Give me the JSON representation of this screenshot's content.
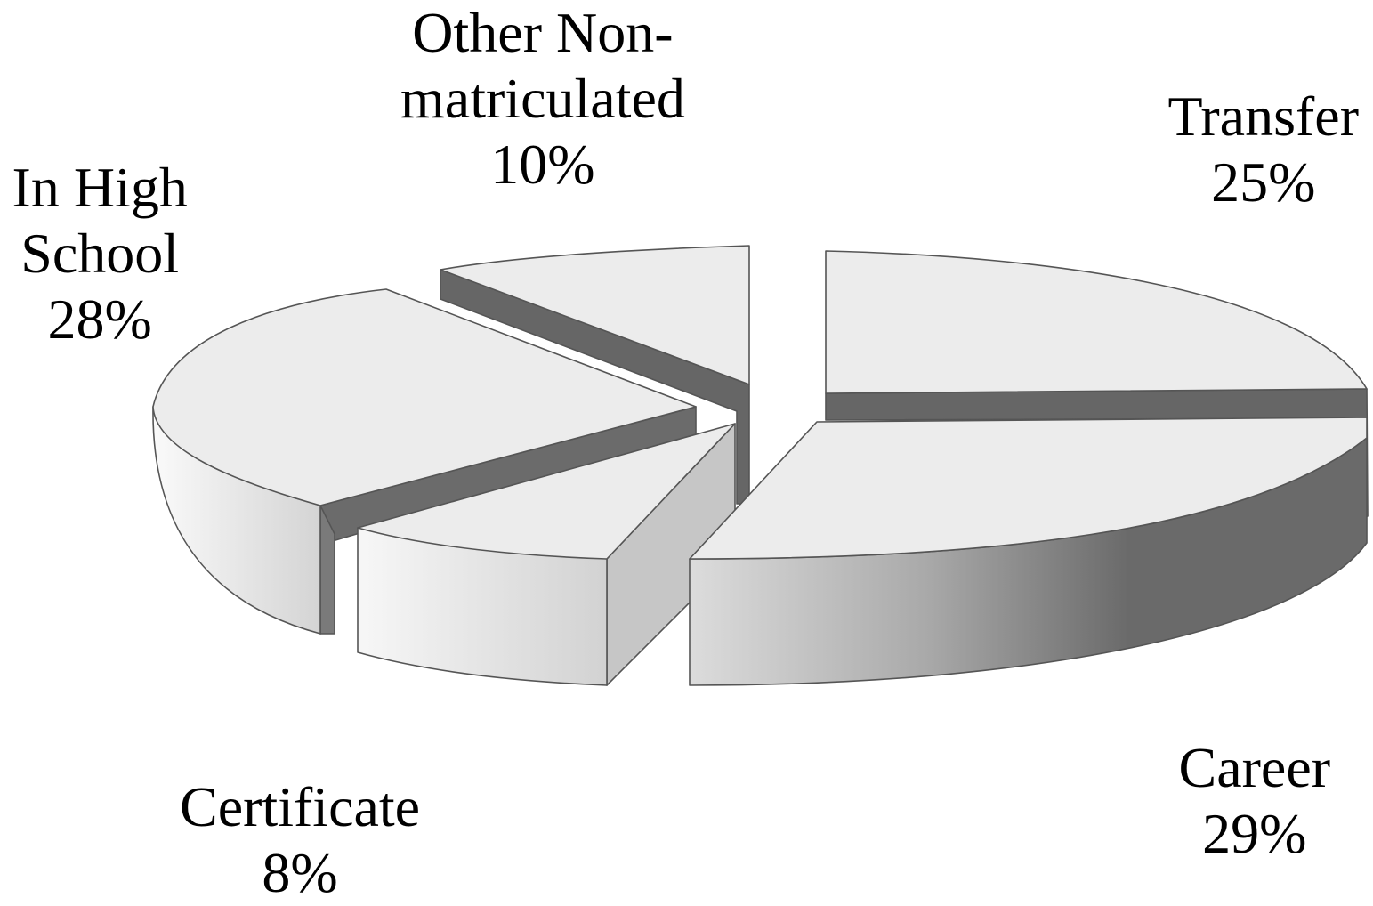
{
  "chart_data": {
    "type": "pie",
    "title": "",
    "style": "3d-exploded",
    "slices": [
      {
        "name": "Transfer",
        "value": 25,
        "value_label": "25%",
        "label_lines": [
          "Transfer"
        ]
      },
      {
        "name": "Career",
        "value": 29,
        "value_label": "29%",
        "label_lines": [
          "Career"
        ]
      },
      {
        "name": "Certificate",
        "value": 8,
        "value_label": "8%",
        "label_lines": [
          "Certificate"
        ]
      },
      {
        "name": "In High School",
        "value": 28,
        "value_label": "28%",
        "label_lines": [
          "In High",
          "School"
        ]
      },
      {
        "name": "Other Non-matriculated",
        "value": 10,
        "value_label": "10%",
        "label_lines": [
          "Other Non-",
          "matriculated"
        ]
      }
    ],
    "colors": {
      "top_face": "#ececec",
      "side_light": "#e8e8e8",
      "side_dark": "#666666",
      "outline": "#555555"
    }
  }
}
